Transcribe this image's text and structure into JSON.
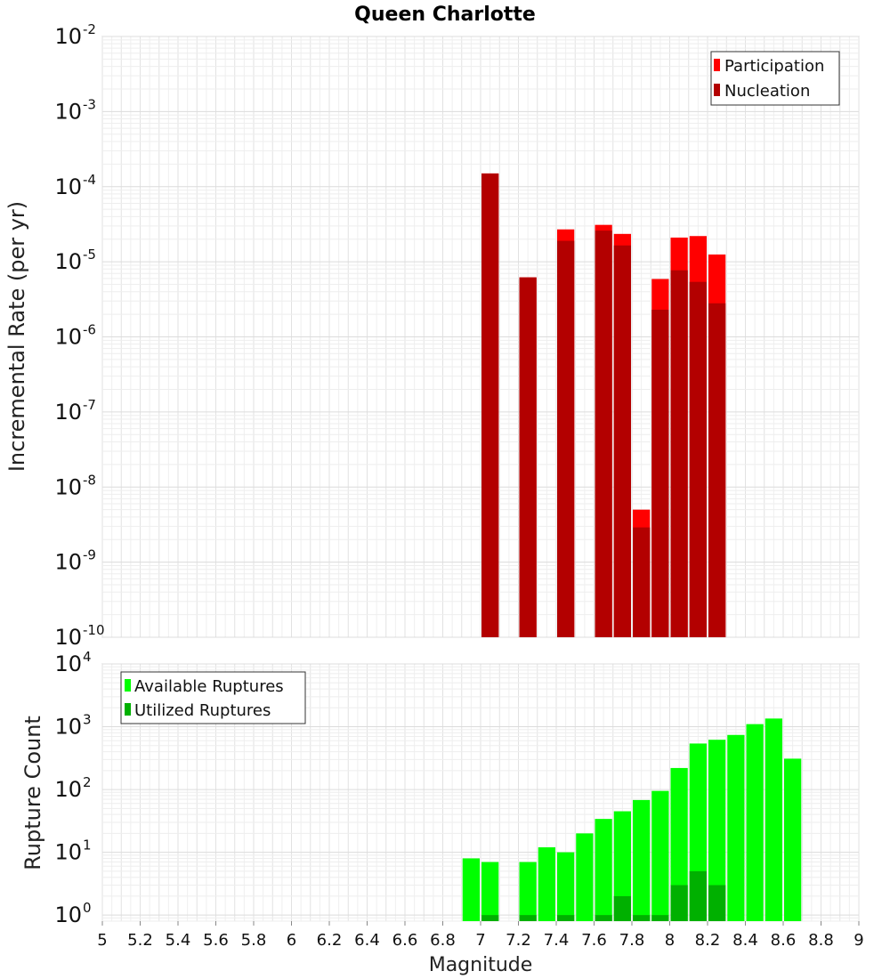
{
  "title": "Queen Charlotte",
  "xlabel": "Magnitude",
  "x_ticks": [
    "5",
    "5.2",
    "5.4",
    "5.6",
    "5.8",
    "6",
    "6.2",
    "6.4",
    "6.6",
    "6.8",
    "7",
    "7.2",
    "7.4",
    "7.6",
    "7.8",
    "8",
    "8.2",
    "8.4",
    "8.6",
    "8.8",
    "9"
  ],
  "chart_data": [
    {
      "type": "bar",
      "ylabel": "Incremental Rate (per yr)",
      "yscale": "log",
      "ylim": [
        1e-10,
        0.01
      ],
      "xlim": [
        5,
        9
      ],
      "bar_width": 0.1,
      "y_ticks": [
        {
          "base": "10",
          "exp": "-10"
        },
        {
          "base": "10",
          "exp": "-9"
        },
        {
          "base": "10",
          "exp": "-8"
        },
        {
          "base": "10",
          "exp": "-7"
        },
        {
          "base": "10",
          "exp": "-6"
        },
        {
          "base": "10",
          "exp": "-5"
        },
        {
          "base": "10",
          "exp": "-4"
        },
        {
          "base": "10",
          "exp": "-3"
        },
        {
          "base": "10",
          "exp": "-2"
        }
      ],
      "legend_position": "top-right",
      "grid": true,
      "series": [
        {
          "name": "Participation",
          "color": "#ff0000",
          "x": [
            7.05,
            7.25,
            7.45,
            7.65,
            7.75,
            7.85,
            7.95,
            8.05,
            8.15,
            8.25
          ],
          "values": [
            0.00015,
            6.2e-06,
            2.7e-05,
            3.1e-05,
            2.35e-05,
            5e-09,
            5.9e-06,
            2.1e-05,
            2.2e-05,
            1.25e-05
          ]
        },
        {
          "name": "Nucleation",
          "color": "#b30000",
          "x": [
            7.05,
            7.25,
            7.45,
            7.65,
            7.75,
            7.85,
            7.95,
            8.05,
            8.15,
            8.25
          ],
          "values": [
            0.00015,
            6.2e-06,
            1.9e-05,
            2.6e-05,
            1.65e-05,
            2.9e-09,
            2.3e-06,
            7.7e-06,
            5.4e-06,
            2.8e-06
          ]
        }
      ]
    },
    {
      "type": "bar",
      "ylabel": "Rupture Count",
      "yscale": "log",
      "ylim": [
        0.8,
        10000
      ],
      "xlim": [
        5,
        9
      ],
      "bar_width": 0.1,
      "y_ticks": [
        {
          "base": "10",
          "exp": "0",
          "value": 1
        },
        {
          "base": "10",
          "exp": "1",
          "value": 10
        },
        {
          "base": "10",
          "exp": "2",
          "value": 100
        },
        {
          "base": "10",
          "exp": "3",
          "value": 1000
        },
        {
          "base": "10",
          "exp": "4",
          "value": 10000
        }
      ],
      "legend_position": "top-left",
      "grid": true,
      "series": [
        {
          "name": "Available Ruptures",
          "color": "#00ff00",
          "x": [
            6.95,
            7.05,
            7.25,
            7.35,
            7.45,
            7.55,
            7.65,
            7.75,
            7.85,
            7.95,
            8.05,
            8.15,
            8.25,
            8.35,
            8.45,
            8.55,
            8.65
          ],
          "values": [
            8,
            7,
            7,
            12,
            10,
            20,
            34,
            45,
            68,
            95,
            220,
            540,
            620,
            740,
            1100,
            1350,
            310
          ]
        },
        {
          "name": "Utilized Ruptures",
          "color": "#00b000",
          "x": [
            7.05,
            7.25,
            7.45,
            7.65,
            7.75,
            7.85,
            7.95,
            8.05,
            8.15,
            8.25
          ],
          "values": [
            1,
            1,
            1,
            1,
            2,
            1,
            1,
            3,
            5,
            3
          ]
        }
      ]
    }
  ]
}
